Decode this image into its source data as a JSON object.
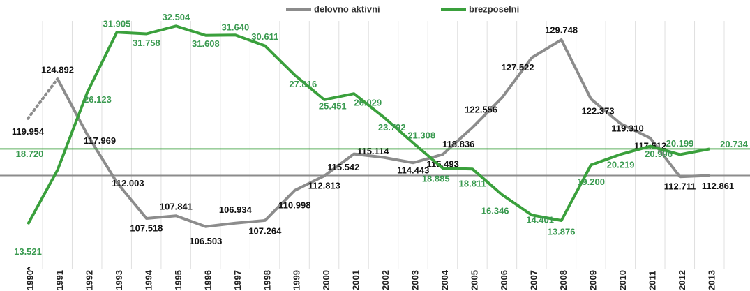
{
  "chart_data": {
    "type": "line",
    "categories": [
      "1990*",
      "1991",
      "1992",
      "1993",
      "1994",
      "1995",
      "1996",
      "1997",
      "1998",
      "1999",
      "2000",
      "2001",
      "2002",
      "2003",
      "2004",
      "2005",
      "2006",
      "2007",
      "2008",
      "2009",
      "2010",
      "2011",
      "2012",
      "2013"
    ],
    "series": [
      {
        "name": "delovno aktivni",
        "color": "#8c8c8c",
        "values": [
          119954,
          124892,
          117969,
          112003,
          107518,
          107841,
          106503,
          106934,
          107264,
          110998,
          112813,
          115542,
          115114,
          114443,
          115493,
          118836,
          122556,
          127522,
          129748,
          122373,
          119310,
          117512,
          112711,
          112861
        ],
        "value_labels": [
          "119.954",
          "124.892",
          "117.969",
          "112.003",
          "107.518",
          "107.841",
          "106.503",
          "106.934",
          "107.264",
          "110.998",
          "112.813",
          "115.542",
          "115.114",
          "114.443",
          "115.493",
          "118.836",
          "122.556",
          "127.522",
          "129.748",
          "122.373",
          "119.310",
          "117.512",
          "112.711",
          "112.861"
        ]
      },
      {
        "name": "brezposelni",
        "color": "#3aa03c",
        "axis": "y2",
        "values": [
          13521,
          18720,
          26123,
          31905,
          31758,
          32504,
          31608,
          31640,
          30611,
          27816,
          25451,
          26029,
          23792,
          21308,
          18885,
          18811,
          16346,
          14401,
          13876,
          19200,
          20219,
          20996,
          20199,
          20734
        ],
        "value_labels": [
          "13.521",
          "18.720",
          "26.123",
          "31.905",
          "31.758",
          "32.504",
          "31.608",
          "31.640",
          "30.611",
          "27.816",
          "25.451",
          "26.029",
          "23.792",
          "21.308",
          "18.885",
          "18.811",
          "16.346",
          "14.401",
          "13.876",
          "19.200",
          "20.219",
          "20.996",
          "20.199",
          "20.734"
        ]
      }
    ],
    "ylim": [
      101700,
      134700
    ],
    "y2lim": [
      9600,
      35000
    ],
    "legend": "top"
  }
}
